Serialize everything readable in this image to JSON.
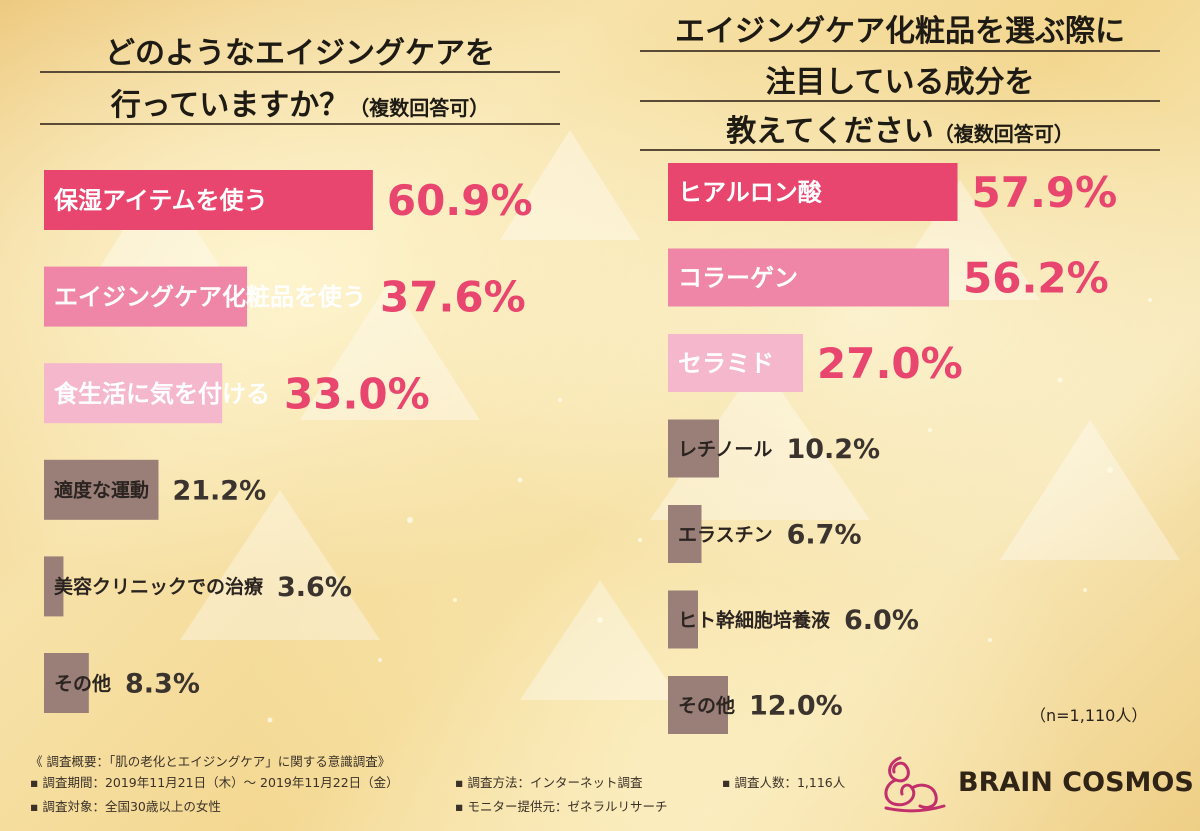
{
  "chart_data": [
    {
      "type": "bar",
      "title": "どのようなエイジングケアを行っていますか？",
      "title_lines": [
        "どのようなエイジングケアを",
        "行っていますか？"
      ],
      "title_note": "（複数回答可）",
      "categories": [
        "保湿アイテムを使う",
        "エイジングケア化粧品を使う",
        "食生活に気を付ける",
        "適度な運動",
        "美容クリニックでの治療",
        "その他"
      ],
      "values": [
        60.9,
        37.6,
        33.0,
        21.2,
        3.6,
        8.3
      ],
      "value_labels": [
        "60.9%",
        "37.6%",
        "33.0%",
        "21.2%",
        "3.6%",
        "8.3%"
      ],
      "bar_colors": [
        "#e8466e",
        "#ef86a8",
        "#f5b7cc",
        "#9a7e78",
        "#9a7e78",
        "#9a7e78"
      ],
      "label_colors": [
        "#ffffff",
        "#ffffff",
        "#ffffff",
        "#2b2420",
        "#2b2420",
        "#2b2420"
      ],
      "value_colors": [
        "#e8466e",
        "#e8466e",
        "#e8466e",
        "#3b332d",
        "#3b332d",
        "#3b332d"
      ],
      "xlim": [
        0,
        100
      ]
    },
    {
      "type": "bar",
      "title": "エイジングケア化粧品を選ぶ際に注目している成分を教えてください",
      "title_lines": [
        "エイジングケア化粧品を選ぶ際に",
        "注目している成分を",
        "教えてください"
      ],
      "title_note": "（複数回答可）",
      "categories": [
        "ヒアルロン酸",
        "コラーゲン",
        "セラミド",
        "レチノール",
        "エラスチン",
        "ヒト幹細胞培養液",
        "その他"
      ],
      "values": [
        57.9,
        56.2,
        27.0,
        10.2,
        6.7,
        6.0,
        12.0
      ],
      "value_labels": [
        "57.9%",
        "56.2%",
        "27.0%",
        "10.2%",
        "6.7%",
        "6.0%",
        "12.0%"
      ],
      "bar_colors": [
        "#e8466e",
        "#ef86a8",
        "#f5b7cc",
        "#9a7e78",
        "#9a7e78",
        "#9a7e78",
        "#9a7e78"
      ],
      "label_colors": [
        "#ffffff",
        "#ffffff",
        "#ffffff",
        "#2b2420",
        "#2b2420",
        "#2b2420",
        "#2b2420"
      ],
      "value_colors": [
        "#e8466e",
        "#e8466e",
        "#e8466e",
        "#3b332d",
        "#3b332d",
        "#3b332d",
        "#3b332d"
      ],
      "xlim": [
        0,
        100
      ]
    }
  ],
  "sample_size": "（n=1,110人）",
  "footer": {
    "survey_title": "《 調査概要：「肌の老化とエイジングケア」に関する意識調査》",
    "period": "▪ 調査期間：2019年11月21日（木）～ 2019年11月22日（金）",
    "target": "▪ 調査対象：全国30歳以上の女性",
    "method": "▪ 調査方法：インターネット調査",
    "monitor": "▪ モニター提供元：ゼネラルリサーチ",
    "count": "▪ 調査人数：1,116人"
  },
  "brand": {
    "name": "BRAIN COSMOS",
    "logo_color": "#c2306b"
  }
}
